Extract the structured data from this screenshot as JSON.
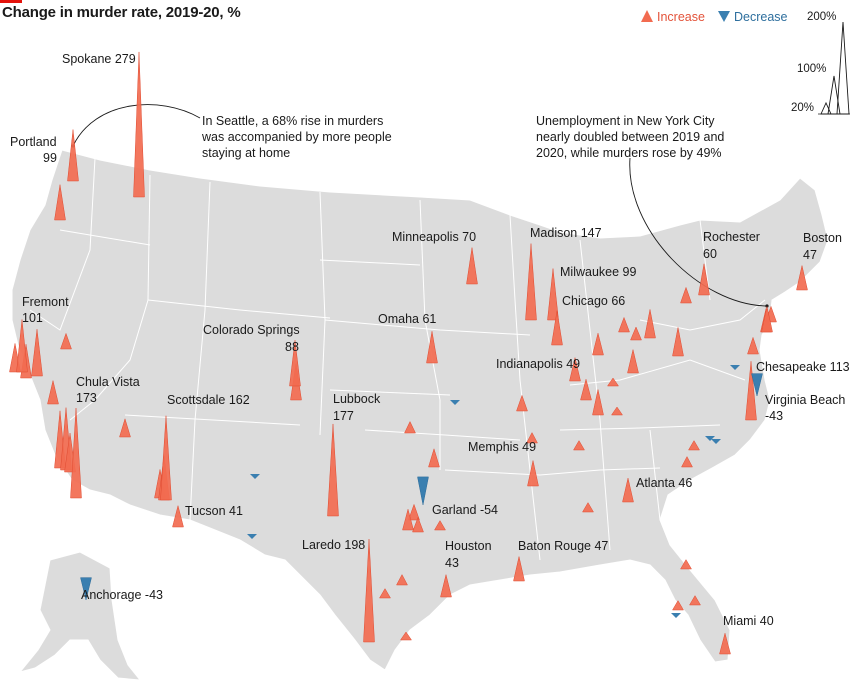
{
  "title": "Change in murder rate, 2019-20, %",
  "legend": {
    "increase_label": "Increase",
    "decrease_label": "Decrease",
    "increase_color": "#f26b50",
    "decrease_color": "#3a7fb0",
    "scale_values": [
      "200%",
      "100%",
      "20%"
    ]
  },
  "annotations": {
    "seattle": [
      "In Seattle, a 68% rise in murders",
      "was accompanied by more people",
      "staying at home"
    ],
    "nyc": [
      "Unemployment in New York City",
      "nearly doubled between 2019 and",
      "2020, while murders rose by 49%"
    ]
  },
  "cities": [
    {
      "name": "Spokane",
      "value": 279,
      "label": "Spokane 279"
    },
    {
      "name": "Portland",
      "value": 99,
      "label": "Portland",
      "label2": "99"
    },
    {
      "name": "Fremont",
      "value": 101,
      "label": "Fremont",
      "label2": "101"
    },
    {
      "name": "Chula Vista",
      "value": 173,
      "label": "Chula Vista",
      "label2": "173"
    },
    {
      "name": "Scottsdale",
      "value": 162,
      "label": "Scottsdale 162"
    },
    {
      "name": "Colorado Springs",
      "value": 88,
      "label": "Colorado Springs",
      "label2": "88"
    },
    {
      "name": "Tucson",
      "value": 41,
      "label": "Tucson 41"
    },
    {
      "name": "Lubbock",
      "value": 177,
      "label": "Lubbock",
      "label2": "177"
    },
    {
      "name": "Laredo",
      "value": 198,
      "label": "Laredo 198"
    },
    {
      "name": "Garland",
      "value": -54,
      "label": "Garland -54"
    },
    {
      "name": "Houston",
      "value": 43,
      "label": "Houston",
      "label2": "43"
    },
    {
      "name": "Baton Rouge",
      "value": 47,
      "label": "Baton Rouge 47"
    },
    {
      "name": "Minneapolis",
      "value": 70,
      "label": "Minneapolis 70"
    },
    {
      "name": "Omaha",
      "value": 61,
      "label": "Omaha 61"
    },
    {
      "name": "Madison",
      "value": 147,
      "label": "Madison 147"
    },
    {
      "name": "Milwaukee",
      "value": 99,
      "label": "Milwaukee 99"
    },
    {
      "name": "Chicago",
      "value": 66,
      "label": "Chicago 66"
    },
    {
      "name": "Indianapolis",
      "value": 49,
      "label": "Indianapolis 49"
    },
    {
      "name": "Memphis",
      "value": 49,
      "label": "Memphis 49"
    },
    {
      "name": "Atlanta",
      "value": 46,
      "label": "Atlanta 46"
    },
    {
      "name": "Miami",
      "value": 40,
      "label": "Miami 40"
    },
    {
      "name": "Rochester",
      "value": 60,
      "label": "Rochester",
      "label2": "60"
    },
    {
      "name": "Boston",
      "value": 47,
      "label": "Boston",
      "label2": "47"
    },
    {
      "name": "Chesapeake",
      "value": 113,
      "label": "Chesapeake 113"
    },
    {
      "name": "Virginia Beach",
      "value": -43,
      "label": "Virginia Beach",
      "label2": "-43"
    },
    {
      "name": "Anchorage",
      "value": -43,
      "label": "Anchorage -43"
    },
    {
      "name": "New York City",
      "value": 49
    },
    {
      "name": "Seattle",
      "value": 68
    }
  ]
}
